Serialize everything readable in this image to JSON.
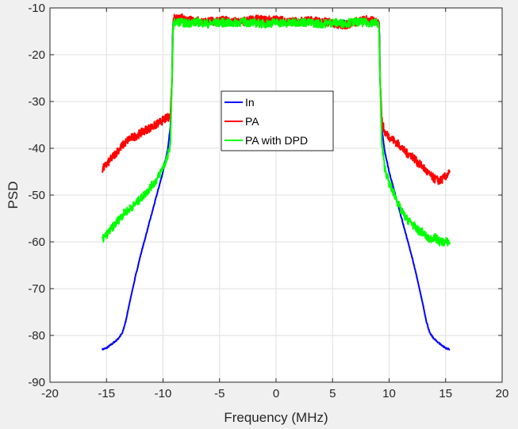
{
  "chart_data": {
    "type": "line",
    "title": "",
    "xlabel": "Frequency (MHz)",
    "ylabel": "PSD",
    "xlim": [
      -20,
      20
    ],
    "ylim": [
      -90,
      -10
    ],
    "xticks": [
      -20,
      -15,
      -10,
      -5,
      0,
      5,
      10,
      15,
      20
    ],
    "yticks": [
      -90,
      -80,
      -70,
      -60,
      -50,
      -40,
      -30,
      -20,
      -10
    ],
    "grid": true,
    "legend_position": "center",
    "series": [
      {
        "name": "In",
        "color": "#0000ff",
        "x": [
          -15.36,
          -15.0,
          -14.5,
          -14.0,
          -13.6,
          -13.3,
          -13.0,
          -12.5,
          -12.0,
          -11.5,
          -11.0,
          -10.5,
          -10.0,
          -9.6,
          -9.35,
          -9.2,
          -9.15,
          -9.1,
          -9.0,
          -8.5,
          -8.0,
          -7.0,
          -6.0,
          -5.0,
          -4.0,
          -3.0,
          -2.0,
          -1.0,
          0.0,
          1.0,
          2.0,
          3.0,
          4.0,
          5.0,
          6.0,
          7.0,
          8.0,
          8.5,
          9.0,
          9.1,
          9.15,
          9.2,
          9.35,
          9.6,
          10.0,
          10.5,
          11.0,
          11.5,
          12.0,
          12.5,
          13.0,
          13.3,
          13.6,
          14.0,
          14.5,
          15.0,
          15.36
        ],
        "y": [
          -83,
          -82.7,
          -81.8,
          -80.8,
          -79.5,
          -77.0,
          -73.5,
          -68.0,
          -63.0,
          -58.5,
          -54.0,
          -49.5,
          -45.0,
          -40.5,
          -35.5,
          -25.0,
          -16.0,
          -13.0,
          -12.8,
          -13.0,
          -12.9,
          -13.1,
          -12.8,
          -13.0,
          -12.9,
          -13.1,
          -12.8,
          -13.0,
          -12.9,
          -13.1,
          -12.8,
          -13.0,
          -12.9,
          -13.1,
          -12.8,
          -13.0,
          -12.9,
          -13.0,
          -12.8,
          -13.0,
          -16.0,
          -25.0,
          -35.5,
          -40.5,
          -45.0,
          -49.5,
          -54.0,
          -58.5,
          -63.0,
          -68.0,
          -73.5,
          -77.0,
          -79.5,
          -80.8,
          -81.8,
          -82.7,
          -83
        ]
      },
      {
        "name": "PA",
        "color": "#ff0000",
        "x": [
          -15.36,
          -15.0,
          -14.5,
          -14.0,
          -13.5,
          -13.0,
          -12.5,
          -12.0,
          -11.5,
          -11.0,
          -10.5,
          -10.0,
          -9.6,
          -9.35,
          -9.2,
          -9.1,
          -9.0,
          -8.5,
          -8.0,
          -7.0,
          -6.0,
          -5.0,
          -4.0,
          -3.0,
          -2.0,
          -1.0,
          0.0,
          1.0,
          2.0,
          3.0,
          4.0,
          5.0,
          6.0,
          7.0,
          8.0,
          8.5,
          9.0,
          9.1,
          9.2,
          9.35,
          9.6,
          10.0,
          10.5,
          11.0,
          11.5,
          12.0,
          12.5,
          13.0,
          13.5,
          14.0,
          14.5,
          15.0,
          15.36
        ],
        "y": [
          -44.5,
          -43.5,
          -42.0,
          -40.5,
          -39.2,
          -38.0,
          -37.5,
          -36.8,
          -36.0,
          -35.5,
          -34.8,
          -34.0,
          -33.5,
          -33.0,
          -25.0,
          -13.0,
          -12.0,
          -11.8,
          -12.5,
          -12.8,
          -13.0,
          -12.6,
          -12.8,
          -13.0,
          -12.4,
          -12.6,
          -12.5,
          -12.8,
          -13.0,
          -12.6,
          -12.9,
          -13.2,
          -13.8,
          -13.0,
          -12.5,
          -12.8,
          -12.9,
          -13.0,
          -25.0,
          -34.0,
          -36.5,
          -37.5,
          -38.5,
          -39.5,
          -41.0,
          -41.5,
          -43.0,
          -44.0,
          -45.5,
          -46.5,
          -47.0,
          -46.0,
          -45.2
        ]
      },
      {
        "name": "PA with DPD",
        "color": "#00ff00",
        "x": [
          -15.36,
          -15.0,
          -14.5,
          -14.0,
          -13.5,
          -13.0,
          -12.5,
          -12.0,
          -11.5,
          -11.0,
          -10.5,
          -10.0,
          -9.6,
          -9.35,
          -9.2,
          -9.1,
          -9.0,
          -8.5,
          -8.0,
          -7.0,
          -6.0,
          -5.0,
          -4.0,
          -3.0,
          -2.0,
          -1.0,
          0.0,
          1.0,
          2.0,
          3.0,
          4.0,
          5.0,
          6.0,
          7.0,
          8.0,
          8.5,
          9.0,
          9.1,
          9.2,
          9.35,
          9.6,
          10.0,
          10.5,
          11.0,
          11.5,
          12.0,
          12.5,
          13.0,
          13.5,
          14.0,
          14.5,
          15.0,
          15.36
        ],
        "y": [
          -59.5,
          -58.5,
          -57.0,
          -55.5,
          -54.0,
          -53.0,
          -52.0,
          -50.8,
          -49.5,
          -48.0,
          -46.5,
          -44.0,
          -42.0,
          -39.0,
          -25.0,
          -14.0,
          -13.2,
          -13.0,
          -13.3,
          -13.0,
          -13.4,
          -13.1,
          -13.3,
          -13.0,
          -13.2,
          -13.4,
          -13.1,
          -13.3,
          -13.0,
          -13.2,
          -13.4,
          -13.1,
          -13.3,
          -13.0,
          -13.2,
          -13.1,
          -13.3,
          -14.0,
          -25.0,
          -39.0,
          -44.0,
          -47.5,
          -50.0,
          -53.0,
          -55.0,
          -56.0,
          -57.5,
          -58.0,
          -59.5,
          -59.0,
          -60.0,
          -60.0,
          -60.0
        ]
      }
    ]
  }
}
